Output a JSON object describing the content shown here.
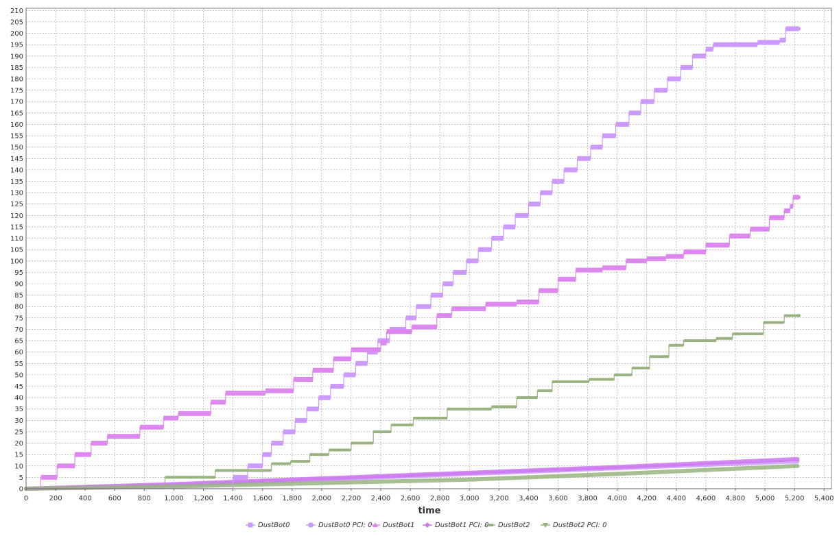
{
  "chart_data": {
    "type": "line",
    "title": "",
    "xlabel": "time",
    "ylabel": "",
    "xlim": [
      0,
      5450
    ],
    "ylim": [
      0,
      211
    ],
    "x_ticks": [
      0,
      200,
      400,
      600,
      800,
      1000,
      1200,
      1400,
      1600,
      1800,
      2000,
      2200,
      2400,
      2600,
      2800,
      3000,
      3200,
      3400,
      3600,
      3800,
      4000,
      4200,
      4400,
      4600,
      4800,
      5000,
      5200,
      5400
    ],
    "x_tick_labels": [
      "0",
      "200",
      "400",
      "600",
      "800",
      "1,000",
      "1,200",
      "1,400",
      "1,600",
      "1,800",
      "2,000",
      "2,200",
      "2,400",
      "2,600",
      "2,800",
      "3,000",
      "3,200",
      "3,400",
      "3,600",
      "3,800",
      "4,000",
      "4,200",
      "4,400",
      "4,600",
      "4,800",
      "5,000",
      "5,200",
      "5,400"
    ],
    "y_ticks": [
      0,
      5,
      10,
      15,
      20,
      25,
      30,
      35,
      40,
      45,
      50,
      55,
      60,
      65,
      70,
      75,
      80,
      85,
      90,
      95,
      100,
      105,
      110,
      115,
      120,
      125,
      130,
      135,
      140,
      145,
      150,
      155,
      160,
      165,
      170,
      175,
      180,
      185,
      190,
      195,
      200,
      205,
      210
    ],
    "grid": true,
    "legend_position": "bottom",
    "series": [
      {
        "name": "DustBot0",
        "color": "#cc99ff",
        "marker": "square",
        "style": "step",
        "points": [
          [
            0,
            0
          ],
          [
            1400,
            0
          ],
          [
            1400,
            5
          ],
          [
            1500,
            5
          ],
          [
            1500,
            10
          ],
          [
            1600,
            10
          ],
          [
            1600,
            15
          ],
          [
            1660,
            15
          ],
          [
            1660,
            20
          ],
          [
            1740,
            20
          ],
          [
            1740,
            25
          ],
          [
            1820,
            25
          ],
          [
            1820,
            30
          ],
          [
            1900,
            30
          ],
          [
            1900,
            35
          ],
          [
            1980,
            35
          ],
          [
            1980,
            40
          ],
          [
            2060,
            40
          ],
          [
            2060,
            45
          ],
          [
            2150,
            45
          ],
          [
            2150,
            50
          ],
          [
            2230,
            50
          ],
          [
            2230,
            55
          ],
          [
            2310,
            55
          ],
          [
            2310,
            60
          ],
          [
            2380,
            60
          ],
          [
            2380,
            65
          ],
          [
            2460,
            65
          ],
          [
            2460,
            70
          ],
          [
            2570,
            70
          ],
          [
            2570,
            75
          ],
          [
            2640,
            75
          ],
          [
            2640,
            80
          ],
          [
            2740,
            80
          ],
          [
            2740,
            85
          ],
          [
            2820,
            85
          ],
          [
            2820,
            90
          ],
          [
            2890,
            90
          ],
          [
            2890,
            95
          ],
          [
            2980,
            95
          ],
          [
            2980,
            100
          ],
          [
            3060,
            100
          ],
          [
            3060,
            105
          ],
          [
            3150,
            105
          ],
          [
            3150,
            110
          ],
          [
            3230,
            110
          ],
          [
            3230,
            115
          ],
          [
            3310,
            115
          ],
          [
            3310,
            120
          ],
          [
            3400,
            120
          ],
          [
            3400,
            125
          ],
          [
            3480,
            125
          ],
          [
            3480,
            130
          ],
          [
            3560,
            130
          ],
          [
            3560,
            135
          ],
          [
            3640,
            135
          ],
          [
            3640,
            140
          ],
          [
            3730,
            140
          ],
          [
            3730,
            145
          ],
          [
            3820,
            145
          ],
          [
            3820,
            150
          ],
          [
            3900,
            150
          ],
          [
            3900,
            155
          ],
          [
            3990,
            155
          ],
          [
            3990,
            160
          ],
          [
            4080,
            160
          ],
          [
            4080,
            165
          ],
          [
            4160,
            165
          ],
          [
            4160,
            170
          ],
          [
            4250,
            170
          ],
          [
            4250,
            175
          ],
          [
            4340,
            175
          ],
          [
            4340,
            180
          ],
          [
            4430,
            180
          ],
          [
            4430,
            185
          ],
          [
            4510,
            185
          ],
          [
            4510,
            190
          ],
          [
            4600,
            190
          ],
          [
            4600,
            193
          ],
          [
            4650,
            193
          ],
          [
            4650,
            195
          ],
          [
            4950,
            195
          ],
          [
            4950,
            196
          ],
          [
            5100,
            196
          ],
          [
            5100,
            197
          ],
          [
            5140,
            197
          ],
          [
            5140,
            202
          ],
          [
            5230,
            202
          ]
        ]
      },
      {
        "name": "DustBot0 PCI: 0",
        "color": "#cc99ff",
        "marker": "circle",
        "style": "band",
        "points": [
          [
            0,
            0
          ],
          [
            1000,
            1.5
          ],
          [
            2000,
            4
          ],
          [
            3000,
            6.5
          ],
          [
            4000,
            9
          ],
          [
            5220,
            12
          ]
        ]
      },
      {
        "name": "DustBot1",
        "color": "#dd88ee",
        "marker": "triangle-up",
        "style": "step",
        "points": [
          [
            0,
            0
          ],
          [
            100,
            0
          ],
          [
            100,
            5
          ],
          [
            210,
            5
          ],
          [
            210,
            10
          ],
          [
            330,
            10
          ],
          [
            330,
            15
          ],
          [
            440,
            15
          ],
          [
            440,
            20
          ],
          [
            550,
            20
          ],
          [
            550,
            23
          ],
          [
            770,
            23
          ],
          [
            770,
            27
          ],
          [
            930,
            27
          ],
          [
            930,
            31
          ],
          [
            1030,
            31
          ],
          [
            1030,
            33
          ],
          [
            1250,
            33
          ],
          [
            1250,
            38
          ],
          [
            1350,
            38
          ],
          [
            1350,
            42
          ],
          [
            1620,
            42
          ],
          [
            1620,
            43
          ],
          [
            1810,
            43
          ],
          [
            1810,
            48
          ],
          [
            1940,
            48
          ],
          [
            1940,
            52
          ],
          [
            2080,
            52
          ],
          [
            2080,
            57
          ],
          [
            2200,
            57
          ],
          [
            2200,
            61
          ],
          [
            2400,
            61
          ],
          [
            2400,
            64
          ],
          [
            2440,
            64
          ],
          [
            2440,
            69
          ],
          [
            2610,
            69
          ],
          [
            2610,
            71
          ],
          [
            2780,
            71
          ],
          [
            2780,
            76
          ],
          [
            2880,
            76
          ],
          [
            2880,
            79
          ],
          [
            3110,
            79
          ],
          [
            3110,
            81
          ],
          [
            3320,
            81
          ],
          [
            3320,
            82
          ],
          [
            3470,
            82
          ],
          [
            3470,
            87
          ],
          [
            3600,
            87
          ],
          [
            3600,
            92
          ],
          [
            3720,
            92
          ],
          [
            3720,
            96
          ],
          [
            3900,
            96
          ],
          [
            3900,
            97
          ],
          [
            4060,
            97
          ],
          [
            4060,
            100
          ],
          [
            4200,
            100
          ],
          [
            4200,
            101
          ],
          [
            4330,
            101
          ],
          [
            4330,
            102
          ],
          [
            4450,
            102
          ],
          [
            4450,
            104
          ],
          [
            4600,
            104
          ],
          [
            4600,
            107
          ],
          [
            4760,
            107
          ],
          [
            4760,
            111
          ],
          [
            4900,
            111
          ],
          [
            4900,
            114
          ],
          [
            5030,
            114
          ],
          [
            5030,
            119
          ],
          [
            5130,
            119
          ],
          [
            5130,
            122
          ],
          [
            5170,
            122
          ],
          [
            5170,
            124
          ],
          [
            5190,
            124
          ],
          [
            5190,
            128
          ],
          [
            5230,
            128
          ]
        ]
      },
      {
        "name": "DustBot1 PCI: 0",
        "color": "#cc77ee",
        "marker": "diamond",
        "style": "band",
        "points": [
          [
            0,
            0
          ],
          [
            1000,
            2
          ],
          [
            2000,
            4.5
          ],
          [
            3000,
            7
          ],
          [
            4000,
            9.5
          ],
          [
            5220,
            13
          ]
        ]
      },
      {
        "name": "DustBot2",
        "color": "#99b380",
        "marker": "bar",
        "style": "step",
        "points": [
          [
            0,
            0
          ],
          [
            940,
            0
          ],
          [
            940,
            5
          ],
          [
            1280,
            5
          ],
          [
            1280,
            8
          ],
          [
            1660,
            8
          ],
          [
            1660,
            11
          ],
          [
            1790,
            11
          ],
          [
            1790,
            12
          ],
          [
            1920,
            12
          ],
          [
            1920,
            15
          ],
          [
            2050,
            15
          ],
          [
            2050,
            17
          ],
          [
            2200,
            17
          ],
          [
            2200,
            20
          ],
          [
            2350,
            20
          ],
          [
            2350,
            25
          ],
          [
            2470,
            25
          ],
          [
            2470,
            28
          ],
          [
            2620,
            28
          ],
          [
            2620,
            31
          ],
          [
            2850,
            31
          ],
          [
            2850,
            35
          ],
          [
            3150,
            35
          ],
          [
            3150,
            36
          ],
          [
            3320,
            36
          ],
          [
            3320,
            40
          ],
          [
            3460,
            40
          ],
          [
            3460,
            43
          ],
          [
            3560,
            43
          ],
          [
            3560,
            47
          ],
          [
            3810,
            47
          ],
          [
            3810,
            48
          ],
          [
            3980,
            48
          ],
          [
            3980,
            50
          ],
          [
            4100,
            50
          ],
          [
            4100,
            53
          ],
          [
            4220,
            53
          ],
          [
            4220,
            58
          ],
          [
            4350,
            58
          ],
          [
            4350,
            63
          ],
          [
            4450,
            63
          ],
          [
            4450,
            65
          ],
          [
            4670,
            65
          ],
          [
            4670,
            66
          ],
          [
            4780,
            66
          ],
          [
            4780,
            68
          ],
          [
            4990,
            68
          ],
          [
            4990,
            73
          ],
          [
            5130,
            73
          ],
          [
            5130,
            76
          ],
          [
            5230,
            76
          ]
        ]
      },
      {
        "name": "DustBot2 PCI: 0",
        "color": "#99b380",
        "marker": "triangle-down",
        "style": "band",
        "points": [
          [
            0,
            0
          ],
          [
            1000,
            1
          ],
          [
            2000,
            2.5
          ],
          [
            3000,
            4
          ],
          [
            4000,
            6.5
          ],
          [
            5220,
            10
          ]
        ]
      }
    ]
  }
}
